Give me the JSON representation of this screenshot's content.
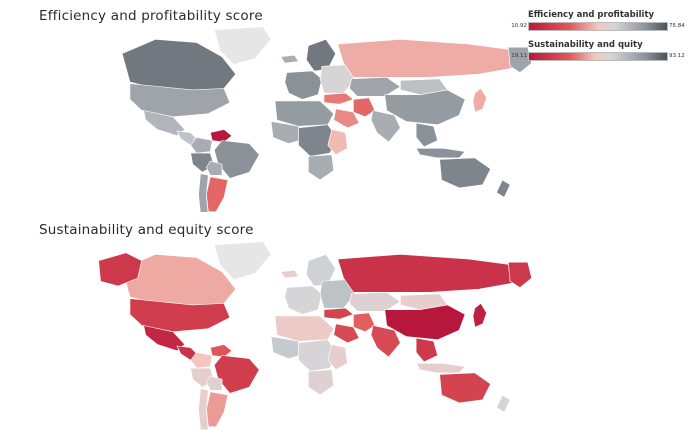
{
  "maps": [
    {
      "title": "Efficiency and profitability score",
      "countries": [
        {
          "name": "Greenland",
          "value": null
        },
        {
          "name": "Canada",
          "value": 70
        },
        {
          "name": "United States",
          "value": 62
        },
        {
          "name": "Mexico",
          "value": 58
        },
        {
          "name": "Central America",
          "value": 55
        },
        {
          "name": "Venezuela",
          "value": 11
        },
        {
          "name": "Colombia",
          "value": 60
        },
        {
          "name": "Brazil",
          "value": 66
        },
        {
          "name": "Peru",
          "value": 68
        },
        {
          "name": "Bolivia",
          "value": 60
        },
        {
          "name": "Argentina",
          "value": 32
        },
        {
          "name": "Chile",
          "value": 62
        },
        {
          "name": "Iceland",
          "value": 60
        },
        {
          "name": "Scandinavia",
          "value": 70
        },
        {
          "name": "Western Europe",
          "value": 66
        },
        {
          "name": "Eastern Europe",
          "value": 50
        },
        {
          "name": "Russia",
          "value": 40
        },
        {
          "name": "Turkey",
          "value": 34
        },
        {
          "name": "Iran",
          "value": 32
        },
        {
          "name": "Saudi Arabia",
          "value": 36
        },
        {
          "name": "North Africa",
          "value": 64
        },
        {
          "name": "West Africa",
          "value": 60
        },
        {
          "name": "Central Africa",
          "value": 68
        },
        {
          "name": "East Africa",
          "value": 42
        },
        {
          "name": "Southern Africa",
          "value": 60
        },
        {
          "name": "Kazakhstan",
          "value": 62
        },
        {
          "name": "Mongolia",
          "value": 56
        },
        {
          "name": "China",
          "value": 64
        },
        {
          "name": "India",
          "value": 60
        },
        {
          "name": "Southeast Asia",
          "value": 66
        },
        {
          "name": "Japan",
          "value": 40
        },
        {
          "name": "Indonesia",
          "value": 66
        },
        {
          "name": "Australia",
          "value": 68
        },
        {
          "name": "New Zealand",
          "value": 68
        },
        {
          "name": "Kamchatka",
          "value": 62
        }
      ]
    },
    {
      "title": "Sustainability and equity score",
      "countries": [
        {
          "name": "Greenland",
          "value": null
        },
        {
          "name": "Canada",
          "value": 52
        },
        {
          "name": "Alaska",
          "value": 30
        },
        {
          "name": "United States",
          "value": 32
        },
        {
          "name": "Mexico",
          "value": 24
        },
        {
          "name": "Central America",
          "value": 28
        },
        {
          "name": "Venezuela",
          "value": 40
        },
        {
          "name": "Colombia",
          "value": 56
        },
        {
          "name": "Brazil",
          "value": 32
        },
        {
          "name": "Peru",
          "value": 60
        },
        {
          "name": "Bolivia",
          "value": 62
        },
        {
          "name": "Argentina",
          "value": 50
        },
        {
          "name": "Chile",
          "value": 60
        },
        {
          "name": "Iceland",
          "value": 60
        },
        {
          "name": "Scandinavia",
          "value": 66
        },
        {
          "name": "Western Europe",
          "value": 64
        },
        {
          "name": "Eastern Europe",
          "value": 70
        },
        {
          "name": "Russia",
          "value": 28
        },
        {
          "name": "Kazakhstan",
          "value": 62
        },
        {
          "name": "Turkey",
          "value": 34
        },
        {
          "name": "Iran",
          "value": 42
        },
        {
          "name": "Saudi Arabia",
          "value": 36
        },
        {
          "name": "North Africa",
          "value": 58
        },
        {
          "name": "West Africa",
          "value": 68
        },
        {
          "name": "Central Africa",
          "value": 64
        },
        {
          "name": "East Africa",
          "value": 60
        },
        {
          "name": "Southern Africa",
          "value": 62
        },
        {
          "name": "Mongolia",
          "value": 60
        },
        {
          "name": "China",
          "value": 19
        },
        {
          "name": "India",
          "value": 36
        },
        {
          "name": "Southeast Asia",
          "value": 30
        },
        {
          "name": "Japan",
          "value": 22
        },
        {
          "name": "Indonesia",
          "value": 60
        },
        {
          "name": "Australia",
          "value": 34
        },
        {
          "name": "New Zealand",
          "value": 64
        },
        {
          "name": "Kamchatka",
          "value": 30
        }
      ]
    }
  ],
  "legend": [
    {
      "title": "Efficiency and profitability",
      "min": "10.92",
      "max": "75.84"
    },
    {
      "title": "Sustainability and quity",
      "min": "19.11",
      "max": "93.12"
    }
  ],
  "colors": {
    "low": "#b8173c",
    "mid_low": "#e25a5a",
    "neutral": "#f3c7bf",
    "light_grey": "#d2d6da",
    "mid_grey": "#8a9198",
    "high": "#4c535a",
    "no_data": "#e6e6e6"
  }
}
